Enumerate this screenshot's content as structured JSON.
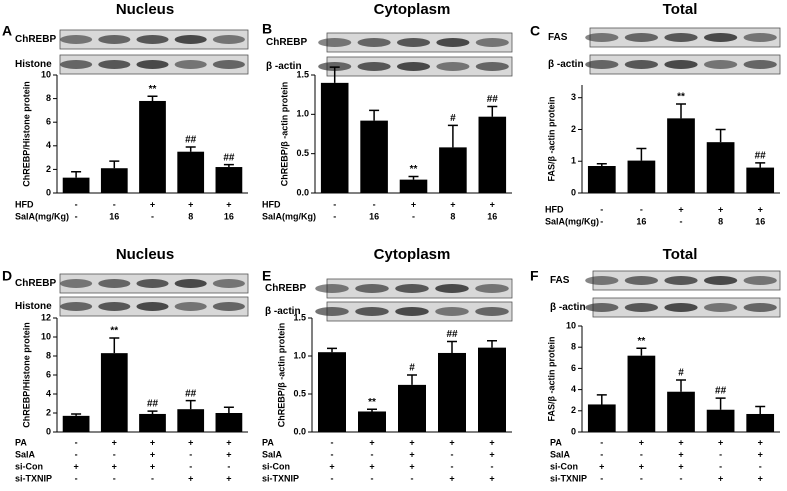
{
  "chart_data": [
    {
      "type": "bar",
      "panel": "A",
      "title": "Nucleus",
      "blots": [
        "ChREBP",
        "Histone"
      ],
      "ylabel": "ChREBP/Histone protein",
      "ylim": [
        0,
        10
      ],
      "yticks": [
        0,
        2,
        4,
        6,
        8,
        10
      ],
      "color": "#000000",
      "values": [
        1.3,
        2.1,
        7.8,
        3.5,
        2.2
      ],
      "errors": [
        0.5,
        0.6,
        0.4,
        0.4,
        0.2
      ],
      "annotations": [
        null,
        null,
        "**",
        "##",
        "##"
      ],
      "conditions": [
        {
          "name": "HFD",
          "values": [
            "-",
            "-",
            "+",
            "+",
            "+"
          ]
        },
        {
          "name": "SalA(mg/Kg)",
          "values": [
            "-",
            "16",
            "-",
            "8",
            "16"
          ]
        }
      ]
    },
    {
      "type": "bar",
      "panel": "B",
      "title": "Cytoplasm",
      "blots": [
        "ChREBP",
        "β -actin"
      ],
      "ylabel": "ChREBP/β -actin protein",
      "ylim": [
        0,
        1.5
      ],
      "yticks": [
        {
          "value": 0,
          "label": "0.0"
        },
        0.5,
        {
          "value": 1,
          "label": "1.0"
        },
        1.5
      ],
      "color": "#000000",
      "values": [
        1.4,
        0.92,
        0.17,
        0.58,
        0.97
      ],
      "errors": [
        0.2,
        0.13,
        0.04,
        0.28,
        0.13
      ],
      "annotations": [
        null,
        null,
        "**",
        "#",
        "##"
      ],
      "conditions": [
        {
          "name": "HFD",
          "values": [
            "-",
            "-",
            "+",
            "+",
            "+"
          ]
        },
        {
          "name": "SalA(mg/Kg)",
          "values": [
            "-",
            "16",
            "-",
            "8",
            "16"
          ]
        }
      ]
    },
    {
      "type": "bar",
      "panel": "C",
      "title": "Total",
      "blots": [
        "FAS",
        "β -actin"
      ],
      "ylabel": "FAS/β -actin protein",
      "ylim": [
        0,
        3.4
      ],
      "yticks": [
        0,
        1,
        2,
        3
      ],
      "color": "#000000",
      "values": [
        0.85,
        1.02,
        2.35,
        1.6,
        0.8
      ],
      "errors": [
        0.07,
        0.38,
        0.45,
        0.4,
        0.15
      ],
      "annotations": [
        null,
        null,
        "**",
        null,
        "##"
      ],
      "conditions": [
        {
          "name": "HFD",
          "values": [
            "-",
            "-",
            "+",
            "+",
            "+"
          ]
        },
        {
          "name": "SalA(mg/Kg)",
          "values": [
            "-",
            "16",
            "-",
            "8",
            "16"
          ]
        }
      ]
    },
    {
      "type": "bar",
      "panel": "D",
      "title": "Nucleus",
      "blots": [
        "ChREBP",
        "Histone"
      ],
      "ylabel": "ChREBP/Histone protein",
      "ylim": [
        0,
        12
      ],
      "yticks": [
        0,
        2,
        4,
        6,
        8,
        10,
        12
      ],
      "color": "#000000",
      "values": [
        1.7,
        8.3,
        1.9,
        2.4,
        2.0
      ],
      "errors": [
        0.2,
        1.6,
        0.3,
        0.9,
        0.6
      ],
      "annotations": [
        null,
        "**",
        "##",
        "##",
        null
      ],
      "conditions": [
        {
          "name": "PA",
          "values": [
            "-",
            "+",
            "+",
            "+",
            "+"
          ]
        },
        {
          "name": "SalA",
          "values": [
            "-",
            "-",
            "+",
            "-",
            "+"
          ]
        },
        {
          "name": "si-Con",
          "values": [
            "+",
            "+",
            "+",
            "-",
            "-"
          ]
        },
        {
          "name": "si-TXNIP",
          "values": [
            "-",
            "-",
            "-",
            "+",
            "+"
          ]
        }
      ]
    },
    {
      "type": "bar",
      "panel": "E",
      "title": "Cytoplasm",
      "blots": [
        "ChREBP",
        "β -actin"
      ],
      "ylabel": "ChREBP/β -actin protein",
      "ylim": [
        0,
        1.5
      ],
      "yticks": [
        {
          "value": 0,
          "label": "0.0"
        },
        0.5,
        {
          "value": 1,
          "label": "1.0"
        },
        1.5
      ],
      "color": "#000000",
      "values": [
        1.05,
        0.27,
        0.62,
        1.04,
        1.11
      ],
      "errors": [
        0.05,
        0.03,
        0.13,
        0.15,
        0.09
      ],
      "annotations": [
        null,
        "**",
        "#",
        "##",
        null
      ],
      "conditions": [
        {
          "name": "PA",
          "values": [
            "-",
            "+",
            "+",
            "+",
            "+"
          ]
        },
        {
          "name": "SalA",
          "values": [
            "-",
            "-",
            "+",
            "-",
            "+"
          ]
        },
        {
          "name": "si-Con",
          "values": [
            "+",
            "+",
            "+",
            "-",
            "-"
          ]
        },
        {
          "name": "si-TXNIP",
          "values": [
            "-",
            "-",
            "-",
            "+",
            "+"
          ]
        }
      ]
    },
    {
      "type": "bar",
      "panel": "F",
      "title": "Total",
      "blots": [
        "FAS",
        "β -actin"
      ],
      "ylabel": "FAS/β -actin protein",
      "ylim": [
        0,
        10
      ],
      "yticks": [
        0,
        2,
        4,
        6,
        8,
        10
      ],
      "color": "#000000",
      "values": [
        2.6,
        7.2,
        3.8,
        2.1,
        1.7
      ],
      "errors": [
        0.9,
        0.7,
        1.1,
        1.1,
        0.7
      ],
      "annotations": [
        null,
        "**",
        "#",
        "##",
        null
      ],
      "conditions": [
        {
          "name": "PA",
          "values": [
            "-",
            "+",
            "+",
            "+",
            "+"
          ]
        },
        {
          "name": "SalA",
          "values": [
            "-",
            "-",
            "+",
            "-",
            "+"
          ]
        },
        {
          "name": "si-Con",
          "values": [
            "+",
            "+",
            "+",
            "-",
            "-"
          ]
        },
        {
          "name": "si-TXNIP",
          "values": [
            "-",
            "-",
            "-",
            "+",
            "+"
          ]
        }
      ]
    }
  ]
}
